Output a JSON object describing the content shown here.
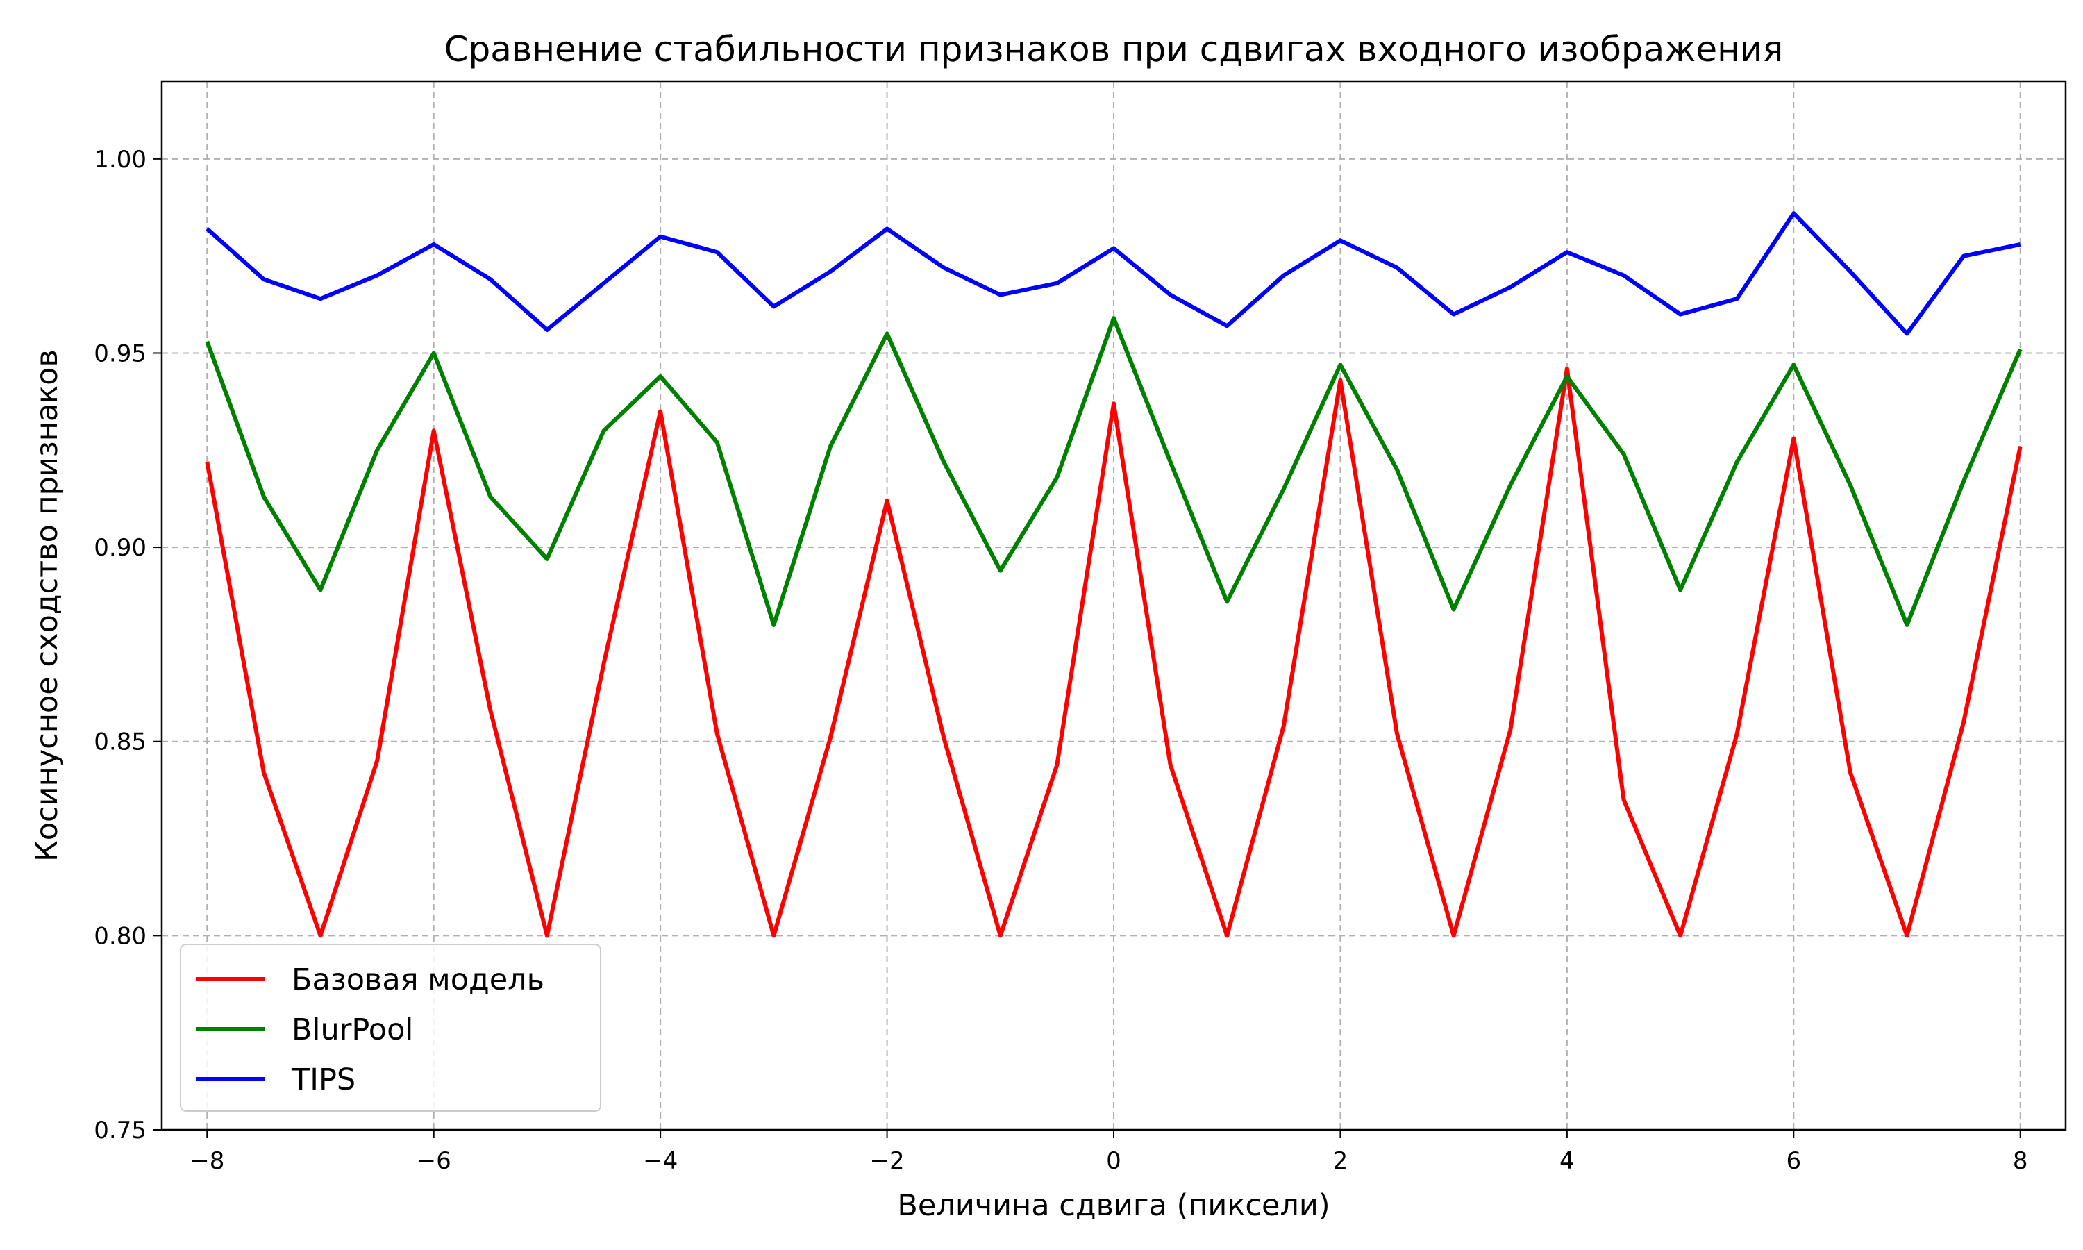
{
  "chart_data": {
    "type": "line",
    "title": "Сравнение стабильности признаков при сдвигах входного изображения",
    "xlabel": "Величина сдвига (пиксели)",
    "ylabel": "Косинусное сходство признаков",
    "xlim": [
      -8.4,
      8.4
    ],
    "ylim": [
      0.75,
      1.02
    ],
    "grid": true,
    "legend_position": "lower-left",
    "x_ticks": [
      -8,
      -6,
      -4,
      -2,
      0,
      2,
      4,
      6,
      8
    ],
    "x_tick_labels": [
      "−8",
      "−6",
      "−4",
      "−2",
      "0",
      "2",
      "4",
      "6",
      "8"
    ],
    "y_ticks": [
      0.75,
      0.8,
      0.85,
      0.9,
      0.95,
      1.0
    ],
    "y_tick_labels": [
      "0.75",
      "0.80",
      "0.85",
      "0.90",
      "0.95",
      "1.00"
    ],
    "x": [
      -8,
      -7.5,
      -7,
      -6.5,
      -6,
      -5.5,
      -5,
      -4.5,
      -4,
      -3.5,
      -3,
      -2.5,
      -2,
      -1.5,
      -1,
      -0.5,
      0,
      0.5,
      1,
      1.5,
      2,
      2.5,
      3,
      3.5,
      4,
      4.5,
      5,
      5.5,
      6,
      6.5,
      7,
      7.5,
      8
    ],
    "series": [
      {
        "name": "Базовая модель",
        "color": "#ff0000",
        "values": [
          0.922,
          0.842,
          0.8,
          0.845,
          0.93,
          0.858,
          0.8,
          0.87,
          0.935,
          0.852,
          0.8,
          0.851,
          0.912,
          0.851,
          0.8,
          0.844,
          0.937,
          0.844,
          0.8,
          0.854,
          0.943,
          0.852,
          0.8,
          0.853,
          0.946,
          0.835,
          0.8,
          0.852,
          0.928,
          0.842,
          0.8,
          0.855,
          0.926
        ]
      },
      {
        "name": "BlurPool",
        "color": "#008000",
        "values": [
          0.953,
          0.913,
          0.889,
          0.925,
          0.95,
          0.913,
          0.897,
          0.93,
          0.944,
          0.927,
          0.88,
          0.926,
          0.955,
          0.922,
          0.894,
          0.918,
          0.959,
          0.922,
          0.886,
          0.915,
          0.947,
          0.92,
          0.884,
          0.916,
          0.944,
          0.924,
          0.889,
          0.922,
          0.947,
          0.916,
          0.88,
          0.917,
          0.951
        ]
      },
      {
        "name": "TIPS",
        "color": "#0000ff",
        "values": [
          0.982,
          0.969,
          0.964,
          0.97,
          0.978,
          0.969,
          0.956,
          0.968,
          0.98,
          0.976,
          0.962,
          0.971,
          0.982,
          0.972,
          0.965,
          0.968,
          0.977,
          0.965,
          0.957,
          0.97,
          0.979,
          0.972,
          0.96,
          0.967,
          0.976,
          0.97,
          0.96,
          0.964,
          0.986,
          0.971,
          0.955,
          0.975,
          0.978
        ]
      }
    ]
  }
}
